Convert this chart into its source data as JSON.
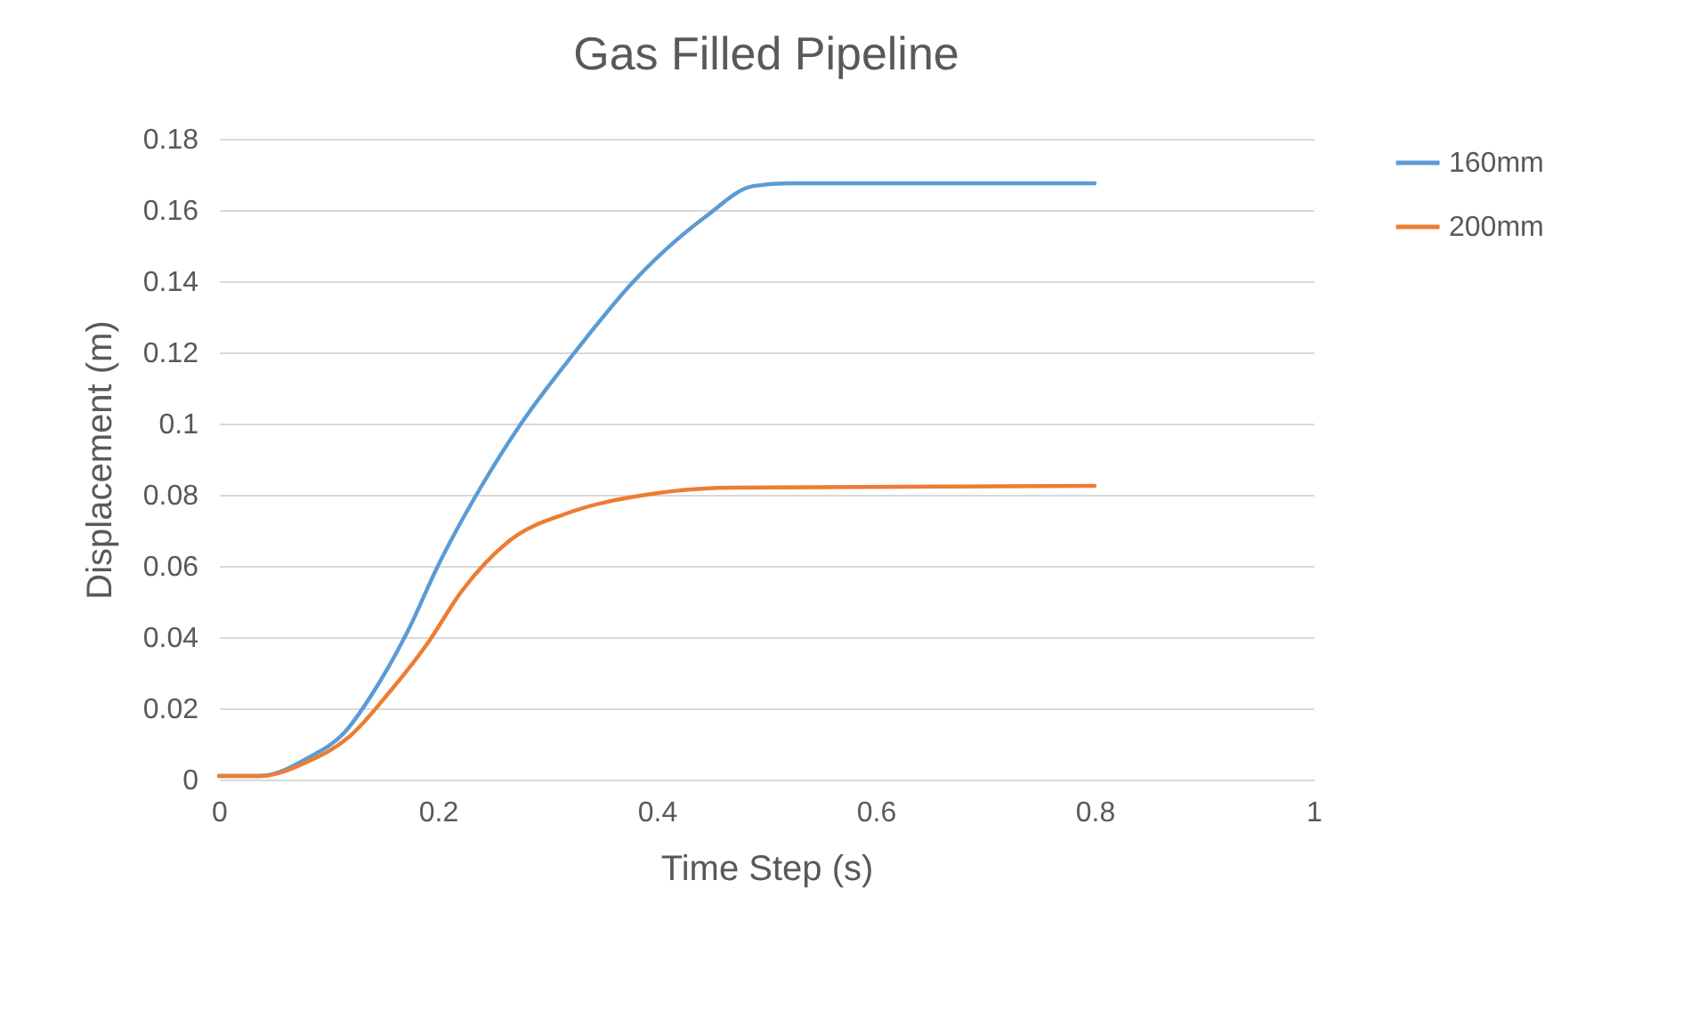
{
  "chart_data": {
    "type": "line",
    "title": "Gas Filled Pipeline",
    "xlabel": "Time Step (s)",
    "ylabel": "Displacement (m)",
    "xlim": [
      0,
      1
    ],
    "xticks": [
      0,
      0.2,
      0.4,
      0.6,
      0.8,
      1
    ],
    "ylim": [
      0,
      0.18
    ],
    "yticks": [
      0,
      0.02,
      0.04,
      0.06,
      0.08,
      0.1,
      0.12,
      0.14,
      0.16,
      0.18
    ],
    "grid": "y",
    "legend": "right",
    "line_style": "solid",
    "marker": "none",
    "series": [
      {
        "name": "160mm",
        "color": "#5b9bd5",
        "x": [
          0,
          0.038,
          0.081,
          0.114,
          0.146,
          0.173,
          0.2,
          0.239,
          0.276,
          0.325,
          0.379,
          0.444,
          0.488,
          0.52,
          0.8
        ],
        "values": [
          0.001,
          0.001,
          0.006,
          0.013,
          0.027,
          0.042,
          0.06,
          0.082,
          0.1,
          0.12,
          0.14,
          0.158,
          0.1667,
          0.1675,
          0.1675
        ]
      },
      {
        "name": "200mm",
        "color": "#ed7d31",
        "x": [
          0,
          0.038,
          0.081,
          0.119,
          0.157,
          0.19,
          0.222,
          0.265,
          0.32,
          0.39,
          0.47,
          0.8
        ],
        "values": [
          0.001,
          0.001,
          0.005,
          0.012,
          0.025,
          0.038,
          0.053,
          0.067,
          0.075,
          0.08,
          0.082,
          0.0825
        ]
      }
    ]
  }
}
